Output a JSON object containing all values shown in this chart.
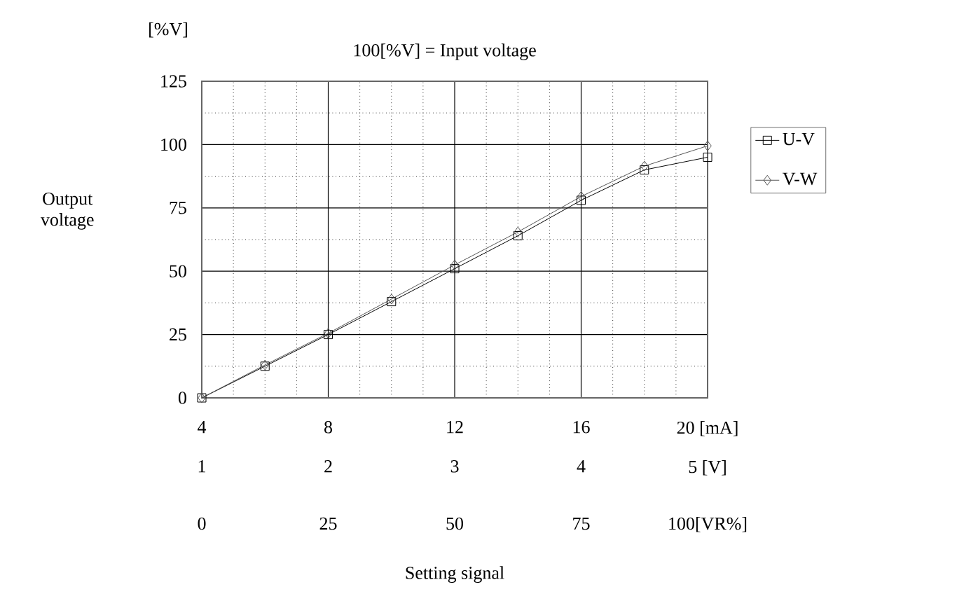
{
  "chart_data": {
    "type": "line",
    "title": "100[%V] = Input voltage",
    "xlabel": "Setting signal",
    "ylabel": "Output voltage",
    "annotations": [
      "[%V]",
      "0",
      "25",
      "50",
      "75",
      "100[VR%]"
    ],
    "x": [
      4,
      6,
      8,
      10,
      12,
      14,
      16,
      18,
      20
    ],
    "xlim": [
      4,
      20
    ],
    "xticks": [
      4,
      8,
      12,
      16,
      {
        "value": 20,
        "label": "20 [mA]"
      }
    ],
    "x2lim": [
      1,
      5
    ],
    "x2ticks": [
      1,
      2,
      3,
      4,
      {
        "value": 5,
        "label": "5 [V]"
      }
    ],
    "ylim": [
      0,
      125
    ],
    "yticks": [
      0,
      25,
      50,
      75,
      100,
      125
    ],
    "grid": true,
    "legend": "right",
    "line_style": "solid",
    "series": [
      {
        "name": "U-V",
        "color": "#000000",
        "marker": "square",
        "values": [
          0,
          12.5,
          25,
          38,
          51,
          64,
          78,
          90,
          95
        ]
      },
      {
        "name": "V-W",
        "color": "#555555",
        "marker": "diamond",
        "values": [
          0,
          13,
          25.5,
          39,
          52.5,
          65.5,
          79.5,
          91.5,
          99.5
        ]
      }
    ]
  }
}
